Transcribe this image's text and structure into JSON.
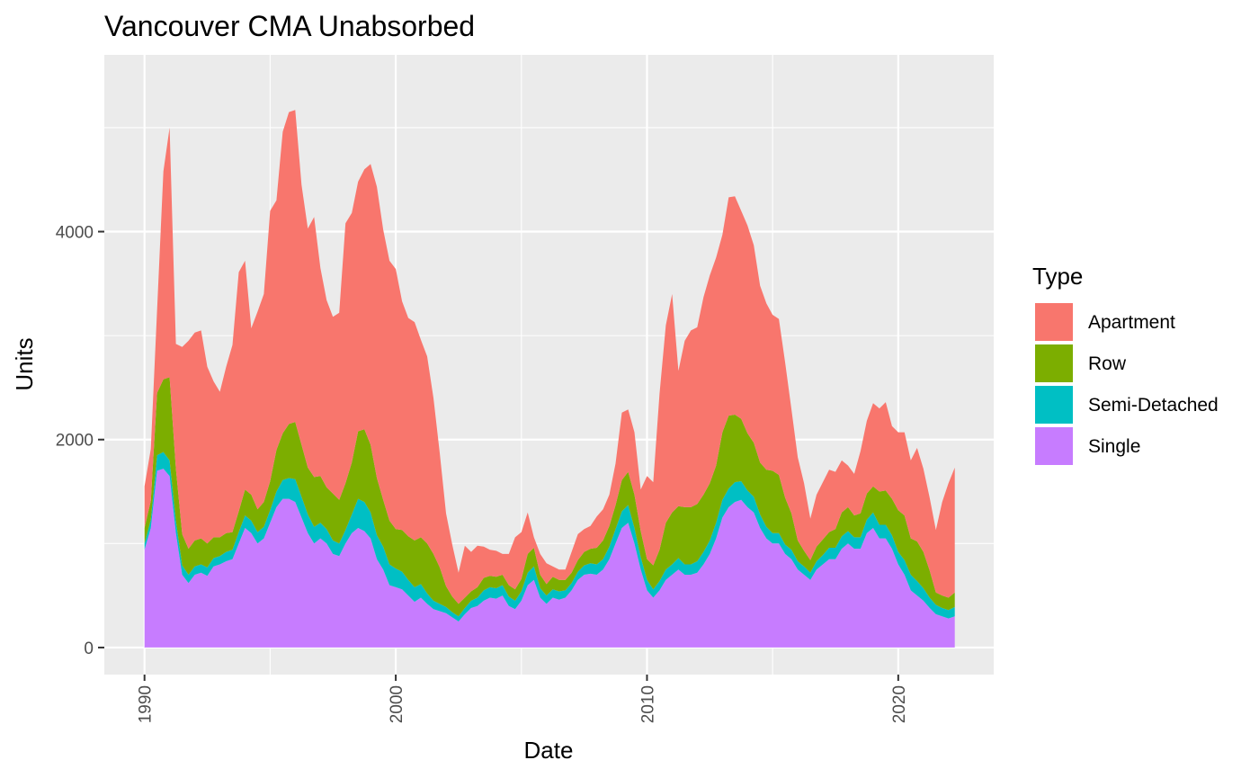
{
  "chart_data": {
    "type": "area",
    "stacked": true,
    "title": "Vancouver CMA Unabsorbed",
    "xlabel": "Date",
    "ylabel": "Units",
    "xlim": [
      1988.4,
      2023.8
    ],
    "ylim": [
      -260,
      5700
    ],
    "x_ticks": [
      1990,
      2000,
      2010,
      2020
    ],
    "y_ticks": [
      0,
      2000,
      4000
    ],
    "x_tick_labels": [
      "1990",
      "2000",
      "2010",
      "2020"
    ],
    "y_tick_labels": [
      "0",
      "2000",
      "4000"
    ],
    "grid": true,
    "legend_placement": "right",
    "legend_title": "Type",
    "legend_order": [
      "Apartment",
      "Row",
      "Semi-Detached",
      "Single"
    ],
    "x": [
      1990.0,
      1990.25,
      1990.5,
      1990.75,
      1991.0,
      1991.25,
      1991.5,
      1991.75,
      1992.0,
      1992.25,
      1992.5,
      1992.75,
      1993.0,
      1993.25,
      1993.5,
      1993.75,
      1994.0,
      1994.25,
      1994.5,
      1994.75,
      1995.0,
      1995.25,
      1995.5,
      1995.75,
      1996.0,
      1996.25,
      1996.5,
      1996.75,
      1997.0,
      1997.25,
      1997.5,
      1997.75,
      1998.0,
      1998.25,
      1998.5,
      1998.75,
      1999.0,
      1999.25,
      1999.5,
      1999.75,
      2000.0,
      2000.25,
      2000.5,
      2000.75,
      2001.0,
      2001.25,
      2001.5,
      2001.75,
      2002.0,
      2002.25,
      2002.5,
      2002.75,
      2003.0,
      2003.25,
      2003.5,
      2003.75,
      2004.0,
      2004.25,
      2004.5,
      2004.75,
      2005.0,
      2005.25,
      2005.5,
      2005.75,
      2006.0,
      2006.25,
      2006.5,
      2006.75,
      2007.0,
      2007.25,
      2007.5,
      2007.75,
      2008.0,
      2008.25,
      2008.5,
      2008.75,
      2009.0,
      2009.25,
      2009.5,
      2009.75,
      2010.0,
      2010.25,
      2010.5,
      2010.75,
      2011.0,
      2011.25,
      2011.5,
      2011.75,
      2012.0,
      2012.25,
      2012.5,
      2012.75,
      2013.0,
      2013.25,
      2013.5,
      2013.75,
      2014.0,
      2014.25,
      2014.5,
      2014.75,
      2015.0,
      2015.25,
      2015.5,
      2015.75,
      2016.0,
      2016.25,
      2016.5,
      2016.75,
      2017.0,
      2017.25,
      2017.5,
      2017.75,
      2018.0,
      2018.25,
      2018.5,
      2018.75,
      2019.0,
      2019.25,
      2019.5,
      2019.75,
      2020.0,
      2020.25,
      2020.5,
      2020.75,
      2021.0,
      2021.25,
      2021.5,
      2021.75,
      2022.0,
      2022.25
    ],
    "series": [
      {
        "name": "Single",
        "color": "#c77cff",
        "values": [
          940,
          1150,
          1700,
          1720,
          1650,
          1100,
          700,
          620,
          700,
          720,
          690,
          780,
          800,
          830,
          850,
          1000,
          1150,
          1100,
          1000,
          1050,
          1200,
          1350,
          1430,
          1430,
          1400,
          1250,
          1100,
          1000,
          1050,
          1000,
          900,
          880,
          1000,
          1100,
          1150,
          1120,
          1050,
          850,
          750,
          600,
          580,
          560,
          500,
          440,
          480,
          420,
          370,
          350,
          330,
          290,
          250,
          320,
          380,
          400,
          450,
          480,
          470,
          500,
          400,
          370,
          450,
          600,
          650,
          480,
          420,
          480,
          460,
          480,
          550,
          650,
          700,
          710,
          700,
          750,
          850,
          1000,
          1150,
          1200,
          1000,
          750,
          550,
          480,
          550,
          650,
          700,
          750,
          700,
          700,
          720,
          800,
          900,
          1050,
          1250,
          1350,
          1400,
          1420,
          1350,
          1300,
          1150,
          1050,
          1000,
          1000,
          900,
          850,
          750,
          700,
          650,
          750,
          800,
          850,
          850,
          950,
          1000,
          950,
          950,
          1100,
          1150,
          1050,
          1050,
          950,
          800,
          700,
          550,
          500,
          450,
          380,
          320,
          300,
          280,
          300
        ]
      },
      {
        "name": "Semi-Detached",
        "color": "#00bfc4",
        "values": [
          60,
          80,
          150,
          160,
          150,
          120,
          90,
          80,
          80,
          80,
          80,
          80,
          80,
          90,
          90,
          110,
          120,
          120,
          110,
          110,
          120,
          150,
          180,
          200,
          220,
          200,
          180,
          160,
          150,
          140,
          130,
          120,
          130,
          180,
          280,
          280,
          250,
          230,
          220,
          200,
          180,
          170,
          150,
          140,
          130,
          100,
          80,
          70,
          60,
          50,
          50,
          60,
          70,
          80,
          100,
          100,
          100,
          100,
          90,
          80,
          90,
          120,
          130,
          90,
          80,
          80,
          80,
          70,
          70,
          80,
          90,
          100,
          100,
          100,
          120,
          140,
          160,
          170,
          150,
          120,
          100,
          80,
          90,
          100,
          100,
          110,
          100,
          100,
          110,
          120,
          130,
          150,
          170,
          180,
          190,
          180,
          160,
          150,
          130,
          110,
          100,
          100,
          90,
          90,
          80,
          80,
          70,
          80,
          90,
          110,
          110,
          120,
          120,
          110,
          110,
          130,
          150,
          130,
          130,
          130,
          120,
          140,
          150,
          140,
          120,
          100,
          90,
          80,
          80,
          90
        ]
      },
      {
        "name": "Row",
        "color": "#7cae00",
        "values": [
          150,
          180,
          600,
          700,
          800,
          500,
          300,
          250,
          250,
          250,
          230,
          200,
          180,
          180,
          170,
          200,
          250,
          250,
          220,
          240,
          280,
          400,
          450,
          520,
          550,
          500,
          450,
          480,
          450,
          400,
          450,
          420,
          450,
          500,
          650,
          700,
          650,
          550,
          450,
          420,
          380,
          400,
          420,
          450,
          450,
          480,
          450,
          350,
          200,
          150,
          120,
          100,
          90,
          100,
          120,
          110,
          110,
          100,
          110,
          110,
          120,
          180,
          180,
          130,
          110,
          120,
          110,
          100,
          100,
          110,
          130,
          140,
          160,
          180,
          200,
          230,
          300,
          320,
          320,
          250,
          200,
          230,
          300,
          450,
          500,
          500,
          550,
          550,
          550,
          550,
          550,
          550,
          650,
          700,
          650,
          600,
          550,
          520,
          500,
          550,
          600,
          560,
          450,
          350,
          200,
          150,
          120,
          140,
          150,
          150,
          180,
          230,
          230,
          210,
          230,
          250,
          250,
          320,
          330,
          350,
          400,
          430,
          350,
          380,
          350,
          260,
          120,
          120,
          120,
          140
        ]
      },
      {
        "name": "Apartment",
        "color": "#f8766d",
        "values": [
          400,
          500,
          800,
          2000,
          2400,
          1200,
          1800,
          2000,
          2000,
          2000,
          1700,
          1500,
          1400,
          1600,
          1800,
          2300,
          2200,
          1600,
          1900,
          2000,
          2600,
          2400,
          2900,
          3000,
          3000,
          2500,
          2300,
          2500,
          2000,
          1800,
          1700,
          1800,
          2500,
          2400,
          2400,
          2500,
          2700,
          2800,
          2600,
          2500,
          2500,
          2200,
          2100,
          2100,
          1900,
          1800,
          1500,
          1100,
          700,
          500,
          300,
          500,
          380,
          400,
          300,
          250,
          250,
          200,
          300,
          500,
          450,
          400,
          100,
          200,
          200,
          100,
          100,
          100,
          200,
          250,
          220,
          220,
          300,
          300,
          300,
          400,
          650,
          600,
          600,
          400,
          800,
          800,
          1500,
          1900,
          2100,
          1300,
          1600,
          1700,
          1700,
          1900,
          2000,
          2000,
          1900,
          2100,
          2100,
          2000,
          2000,
          1900,
          1700,
          1600,
          1500,
          1500,
          1300,
          1000,
          800,
          650,
          400,
          500,
          550,
          600,
          550,
          500,
          400,
          400,
          600,
          700,
          800,
          800,
          850,
          700,
          750,
          800,
          750,
          900,
          800,
          700,
          600,
          900,
          1100,
          1200
        ]
      }
    ]
  }
}
